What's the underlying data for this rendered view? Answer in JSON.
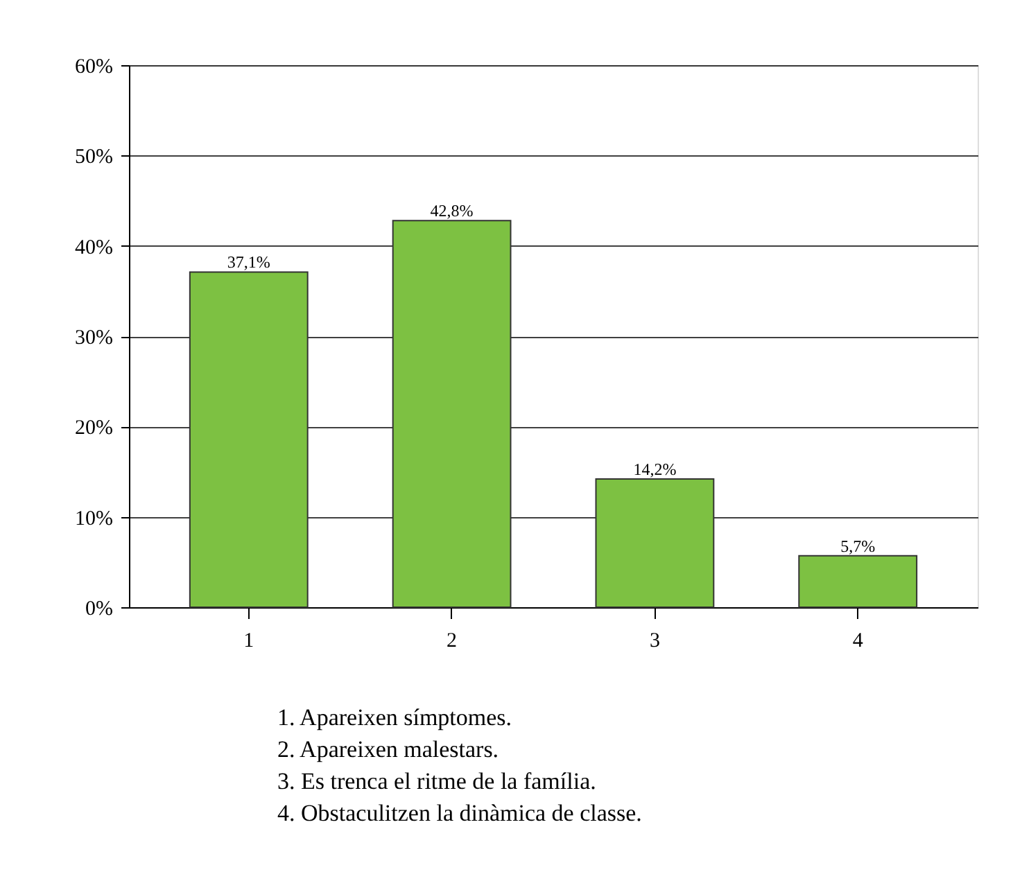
{
  "chart_data": {
    "type": "bar",
    "categories": [
      "1",
      "2",
      "3",
      "4"
    ],
    "values": [
      37.1,
      42.8,
      14.2,
      5.7
    ],
    "value_labels": [
      "37,1%",
      "42,8%",
      "14,2%",
      "5,7%"
    ],
    "color": "#7dc142",
    "ylim": [
      0,
      60
    ],
    "yticks": [
      {
        "value": 0,
        "label": "0%"
      },
      {
        "value": 10,
        "label": "10%"
      },
      {
        "value": 20,
        "label": "20%"
      },
      {
        "value": 30,
        "label": "30%"
      },
      {
        "value": 40,
        "label": "40%"
      },
      {
        "value": 50,
        "label": "50%"
      },
      {
        "value": 60,
        "label": "60%"
      }
    ],
    "grid": "y",
    "annotations": [
      "1. Apareixen símptomes.",
      "2. Apareixen malestars.",
      "3. Es trenca el ritme de la família.",
      "4. Obstaculitzen la dinàmica de classe."
    ]
  }
}
